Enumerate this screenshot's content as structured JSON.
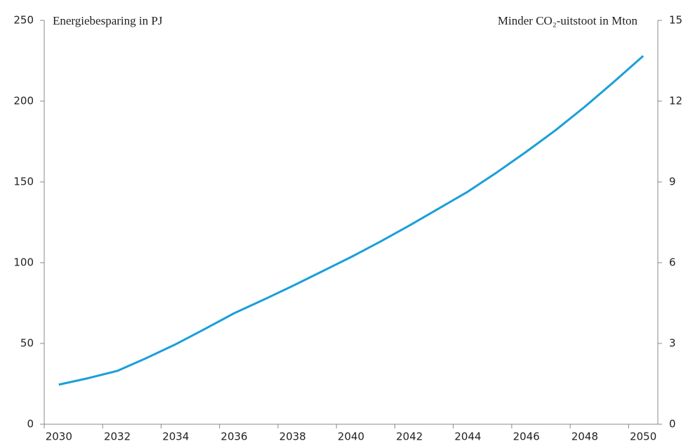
{
  "chart_data": {
    "type": "line",
    "y_label": "Energiebesparing in PJ",
    "y2_label": "Minder CO₂-uitstoot in Mton",
    "categories": [
      "2030",
      null,
      "2032",
      null,
      "2034",
      null,
      "2036",
      null,
      "2038",
      null,
      "2040",
      null,
      "2042",
      null,
      "2044",
      null,
      "2046",
      null,
      "2048",
      null,
      "2050"
    ],
    "series": [
      {
        "color": "#1a9fd9",
        "values": [
          24.5,
          28.5,
          33,
          41,
          49.5,
          59,
          68.7,
          77,
          85.6,
          94.5,
          103.5,
          113,
          123,
          133.5,
          144,
          156,
          168.7,
          182,
          196.5,
          212,
          228
        ]
      }
    ],
    "ylim": [
      0,
      250
    ],
    "yticks": [
      0,
      50,
      100,
      150,
      200,
      250
    ],
    "y2lim": [
      0,
      15
    ],
    "y2ticks": [
      0,
      3,
      6,
      9,
      12,
      15
    ],
    "grid": false
  }
}
